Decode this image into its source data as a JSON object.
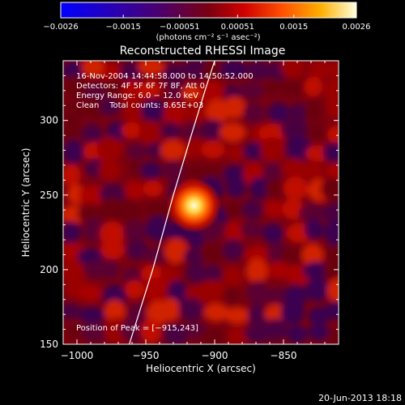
{
  "chart_data": {
    "type": "heatmap",
    "title": "Reconstructed RHESSI Image",
    "xlabel": "Heliocentric X (arcsec)",
    "ylabel": "Heliocentric Y (arcsec)",
    "xlim": [
      -1010,
      -810
    ],
    "ylim": [
      150,
      340
    ],
    "x_ticks": [
      -1000,
      -950,
      -900,
      -850
    ],
    "y_ticks": [
      150,
      200,
      250,
      300
    ],
    "x_tick_labels": [
      "−1000",
      "−950",
      "−900",
      "−850"
    ],
    "y_tick_labels": [
      "150",
      "200",
      "250",
      "300"
    ],
    "colorbar": {
      "unit_label": "(photons cm⁻² s⁻¹ asec⁻²)",
      "range": [
        -0.0026,
        0.0026
      ],
      "ticks": [
        -0.0026,
        -0.0015,
        -0.00051,
        0.00051,
        0.0015,
        0.0026
      ],
      "tick_labels": [
        "−0.0026",
        "−0.0015",
        "−0.00051",
        "0.00051",
        "0.0015",
        "0.0026"
      ],
      "colors": [
        "#0000ff",
        "#3a00a0",
        "#5a0060",
        "#a00000",
        "#ff4000",
        "#ffa000",
        "#ffff80",
        "#ffffff"
      ]
    },
    "info_lines": [
      "16-Nov-2004 14:44:58.000 to 14:50:52.000",
      "Detectors: 4F 5F 6F 7F 8F, Att 0",
      "Energy Range: 6.0 − 12.0 keV",
      "Clean    Total counts: 8.65E+03"
    ],
    "peak_label": "Position of Peak = [−915,243]",
    "peak": {
      "x": -915,
      "y": 243,
      "value": 0.0026
    },
    "limb_curve": {
      "x": [
        -962,
        -945,
        -930,
        -917,
        -907,
        -900
      ],
      "y": [
        150,
        200,
        250,
        290,
        320,
        340
      ]
    },
    "date_stamp": "20-Jun-2013 18:18"
  }
}
